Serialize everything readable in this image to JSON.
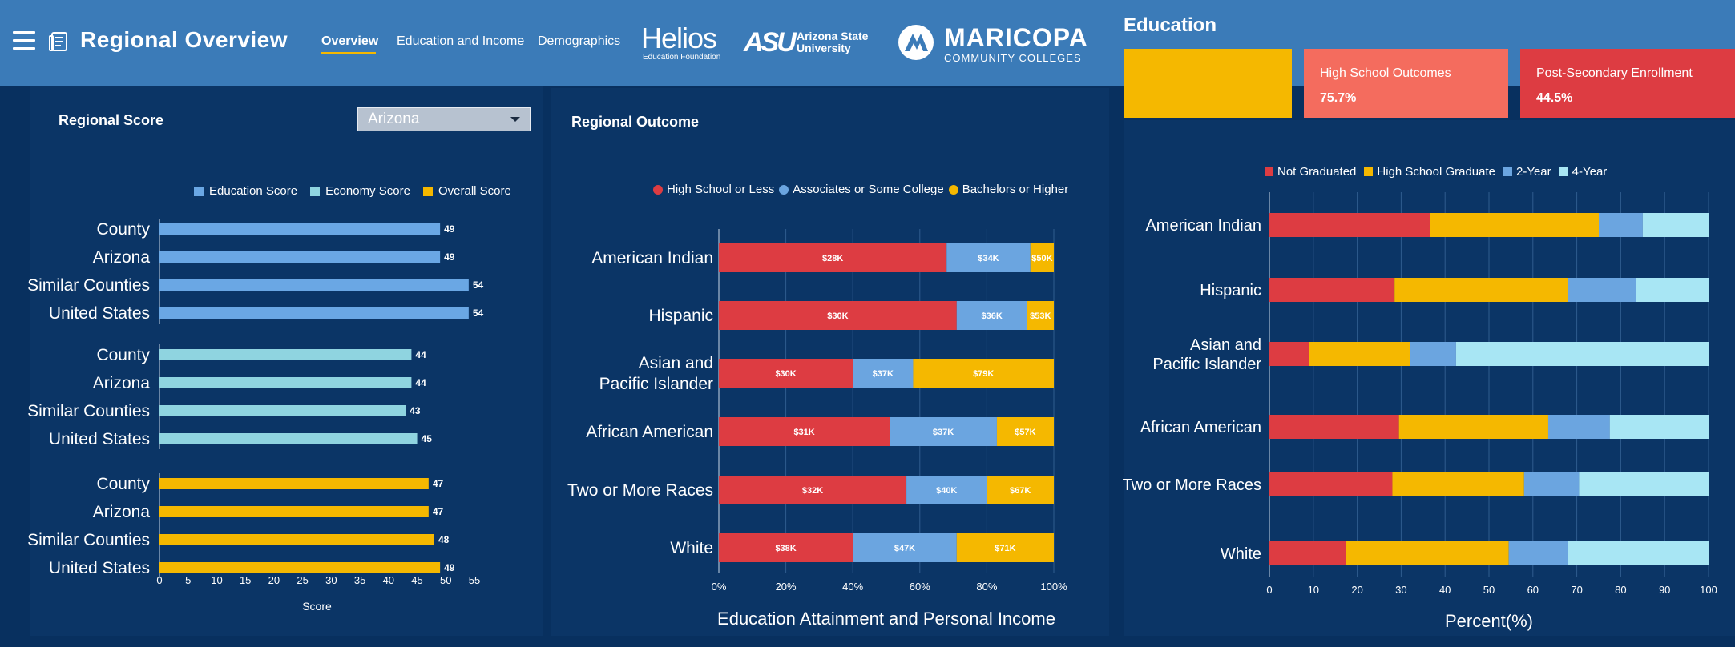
{
  "header": {
    "title": "Regional Overview",
    "tabs": [
      {
        "label": "Overview",
        "active": true
      },
      {
        "label": "Education and Income",
        "active": false
      },
      {
        "label": "Demographics",
        "active": false
      }
    ],
    "logos": {
      "helios_name": "Helios",
      "helios_sub": "Education Foundation",
      "asu_mark": "ASU",
      "asu_sub_line1": "Arizona State",
      "asu_sub_line2": "University",
      "mcc_name": "MARICOPA",
      "mcc_sub": "COMMUNITY COLLEGES"
    }
  },
  "colors": {
    "accent_yellow": "#f5b800",
    "red": "#dd3c42",
    "coral": "#f46c5e",
    "mid_blue": "#6ba5e0",
    "light_blue": "#a8e6f4",
    "teal": "#8fd4e0",
    "edu_blue": "#6aa7e4"
  },
  "regional_score": {
    "title": "Regional Score",
    "dropdown": {
      "selected": "Arizona"
    },
    "legend": [
      "Education Score",
      "Economy Score",
      "Overall Score"
    ]
  },
  "regional_outcome": {
    "title": "Regional Outcome",
    "legend": [
      "High School or Less",
      "Associates or Some College",
      "Bachelors or Higher"
    ]
  },
  "education": {
    "title": "Education",
    "cards": [
      {
        "label": "",
        "value": ""
      },
      {
        "label": "High School Outcomes",
        "value": "75.7%"
      },
      {
        "label": "Post-Secondary Enrollment",
        "value": "44.5%"
      }
    ],
    "legend": [
      "Not Graduated",
      "High School Graduate",
      "2-Year",
      "4-Year"
    ]
  },
  "chart_data": [
    {
      "type": "bar",
      "orientation": "horizontal",
      "title": "Regional Score",
      "xlabel": "Score",
      "xlim": [
        0,
        55
      ],
      "xticks": [
        0,
        5,
        10,
        15,
        20,
        25,
        30,
        35,
        40,
        45,
        50,
        55
      ],
      "groups": [
        {
          "name": "Education Score",
          "color": "#6aa7e4",
          "categories": [
            "County",
            "Arizona",
            "Similar Counties",
            "United States"
          ],
          "values": [
            49,
            49,
            54,
            54
          ]
        },
        {
          "name": "Economy Score",
          "color": "#8fd4e0",
          "categories": [
            "County",
            "Arizona",
            "Similar Counties",
            "United States"
          ],
          "values": [
            44,
            44,
            43,
            45
          ]
        },
        {
          "name": "Overall Score",
          "color": "#f5b800",
          "categories": [
            "County",
            "Arizona",
            "Similar Counties",
            "United States"
          ],
          "values": [
            47,
            47,
            48,
            49
          ]
        }
      ]
    },
    {
      "type": "bar",
      "orientation": "horizontal",
      "stacked": "percent",
      "title": "Education Attainment and Personal Income",
      "xlabel": "Education Attainment and Personal Income",
      "xticks": [
        "0%",
        "20%",
        "40%",
        "60%",
        "80%",
        "100%"
      ],
      "categories": [
        {
          "label": "American Indian",
          "lines": [
            "American Indian"
          ]
        },
        {
          "label": "Hispanic",
          "lines": [
            "Hispanic"
          ]
        },
        {
          "label": "Asian and Pacific Islander",
          "lines": [
            "Asian and",
            "Pacific Islander"
          ]
        },
        {
          "label": "African American",
          "lines": [
            "African American"
          ]
        },
        {
          "label": "Two or More Races",
          "lines": [
            "Two or More Races"
          ]
        },
        {
          "label": "White",
          "lines": [
            "White"
          ]
        }
      ],
      "series": [
        {
          "name": "High School or Less",
          "color": "#dd3c42",
          "values": [
            68,
            71,
            40,
            51,
            56,
            40
          ],
          "labels": [
            "$28K",
            "$30K",
            "$30K",
            "$31K",
            "$32K",
            "$38K"
          ]
        },
        {
          "name": "Associates or Some College",
          "color": "#6ba5e0",
          "values": [
            25,
            21,
            18,
            32,
            24,
            31
          ],
          "labels": [
            "$34K",
            "$36K",
            "$37K",
            "$37K",
            "$40K",
            "$47K"
          ]
        },
        {
          "name": "Bachelors or Higher",
          "color": "#f5b800",
          "values": [
            7,
            8,
            42,
            17,
            20,
            29
          ],
          "labels": [
            "$50K",
            "$53K",
            "$79K",
            "$57K",
            "$67K",
            "$71K"
          ]
        }
      ]
    },
    {
      "type": "bar",
      "orientation": "horizontal",
      "stacked": true,
      "title": "Education",
      "xlabel": "Percent(%)",
      "xlim": [
        0,
        100
      ],
      "xticks": [
        0,
        10,
        20,
        30,
        40,
        50,
        60,
        70,
        80,
        90,
        100
      ],
      "categories": [
        {
          "label": "American Indian",
          "lines": [
            "American Indian"
          ]
        },
        {
          "label": "Hispanic",
          "lines": [
            "Hispanic"
          ]
        },
        {
          "label": "Asian and Pacific Islander",
          "lines": [
            "Asian and",
            "Pacific Islander"
          ]
        },
        {
          "label": "African American",
          "lines": [
            "African American"
          ]
        },
        {
          "label": "Two or More Races",
          "lines": [
            "Two or More Races"
          ]
        },
        {
          "label": "White",
          "lines": [
            "White"
          ]
        }
      ],
      "series": [
        {
          "name": "Not Graduated",
          "color": "#dd3c42",
          "values": [
            36.5,
            28.5,
            9,
            29.5,
            28,
            17.5
          ]
        },
        {
          "name": "High School Graduate",
          "color": "#f5b800",
          "values": [
            38.5,
            39.5,
            23,
            34,
            30,
            37
          ]
        },
        {
          "name": "2-Year",
          "color": "#6ba5e0",
          "values": [
            10,
            15.5,
            10.5,
            14,
            12.5,
            13.5
          ]
        },
        {
          "name": "4-Year",
          "color": "#a8e6f4",
          "values": [
            15,
            16.5,
            57.5,
            22.5,
            29.5,
            32
          ]
        }
      ]
    }
  ]
}
